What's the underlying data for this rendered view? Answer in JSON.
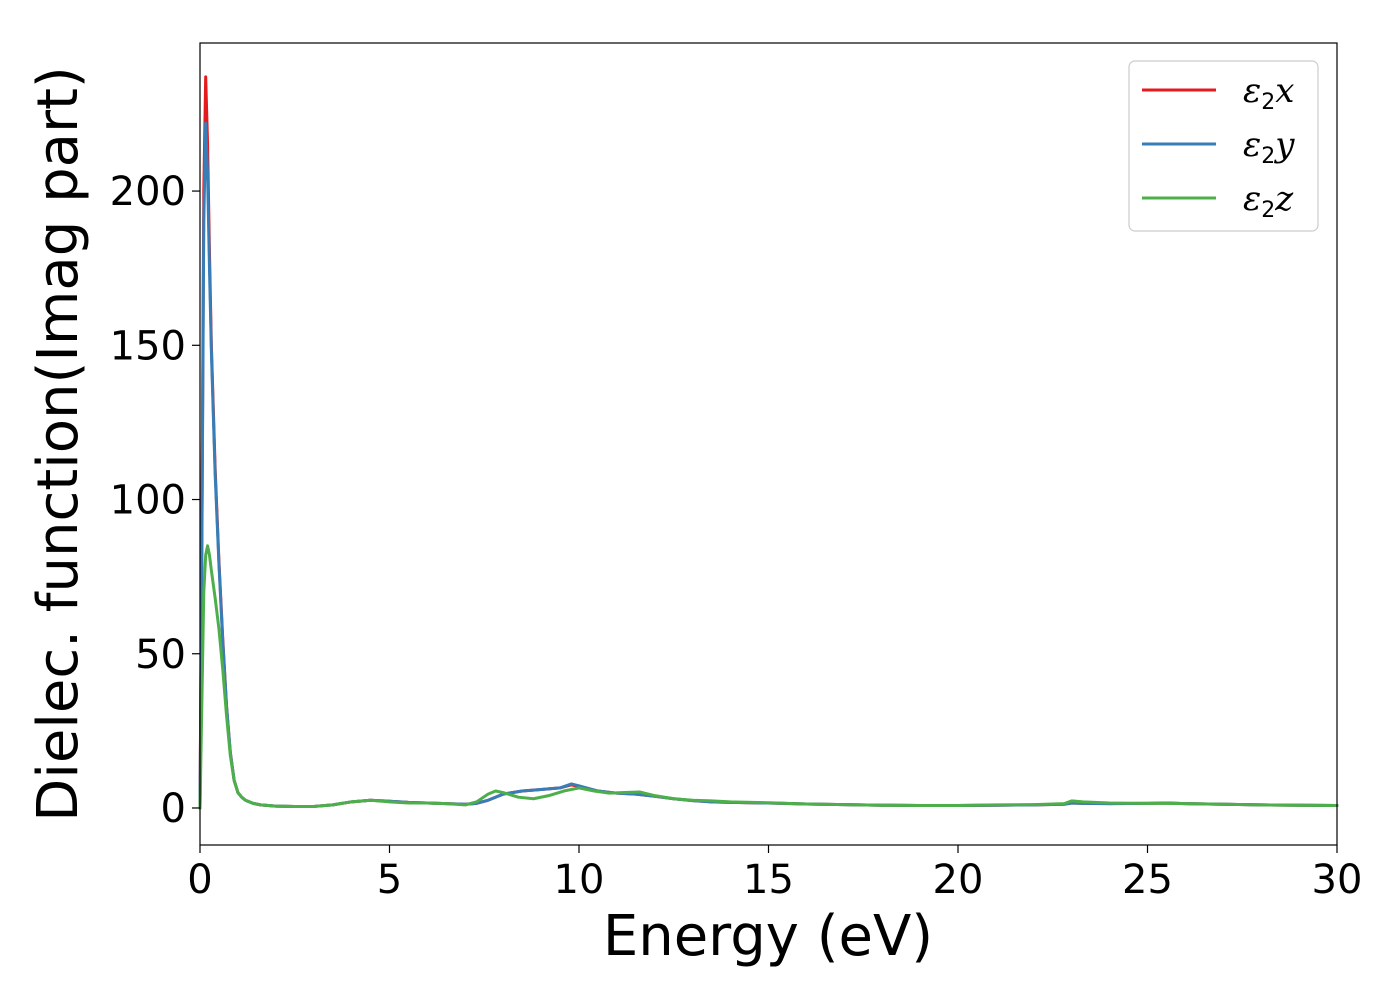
{
  "chart_data": {
    "type": "line",
    "title": "",
    "xlabel": "Energy (eV)",
    "ylabel": "Dielec. function(Imag part)",
    "xlim": [
      0,
      30
    ],
    "ylim": [
      -12,
      248
    ],
    "xticks": [
      0,
      5,
      10,
      15,
      20,
      25,
      30
    ],
    "yticks": [
      0,
      50,
      100,
      150,
      200
    ],
    "xtick_labels": [
      "0",
      "5",
      "10",
      "15",
      "20",
      "25",
      "30"
    ],
    "ytick_labels": [
      "0",
      "50",
      "100",
      "150",
      "200"
    ],
    "grid": false,
    "legend_position": "top-right",
    "series": [
      {
        "name": "ε2x",
        "legend_base": "ε",
        "legend_sub": "2",
        "legend_tail": "x",
        "color": "#e41a1c",
        "x": [
          0,
          0.05,
          0.1,
          0.15,
          0.2,
          0.25,
          0.3,
          0.4,
          0.5,
          0.6,
          0.7,
          0.8,
          0.9,
          1.0,
          1.1,
          1.2,
          1.4,
          1.6,
          2.0,
          2.5,
          3.0,
          3.5,
          4.0,
          4.5,
          5.0,
          5.5,
          6.0,
          6.5,
          7.0,
          7.3,
          7.6,
          8.0,
          8.5,
          9.0,
          9.5,
          9.8,
          10.0,
          10.5,
          11.0,
          11.5,
          12.0,
          12.5,
          13.0,
          13.5,
          14.0,
          15.0,
          16.0,
          17.0,
          18.0,
          19.0,
          20.0,
          21.0,
          22.0,
          22.8,
          23.0,
          23.3,
          24.0,
          25.0,
          25.5,
          26.0,
          27.0,
          28.0,
          29.0,
          30.0
        ],
        "y": [
          0,
          90,
          200,
          237,
          215,
          180,
          150,
          110,
          80,
          55,
          33,
          18,
          9,
          5,
          3.5,
          2.5,
          1.5,
          1.0,
          0.6,
          0.5,
          0.5,
          1.0,
          2.0,
          2.5,
          2.2,
          1.8,
          1.6,
          1.4,
          1.2,
          1.5,
          2.5,
          4.5,
          5.5,
          6.0,
          6.5,
          7.5,
          7.0,
          5.5,
          4.8,
          4.5,
          3.8,
          3.0,
          2.4,
          2.0,
          1.8,
          1.6,
          1.3,
          1.1,
          0.9,
          0.8,
          0.8,
          0.9,
          1.0,
          1.2,
          1.6,
          1.5,
          1.4,
          1.5,
          1.6,
          1.4,
          1.2,
          1.0,
          0.9,
          0.8
        ]
      },
      {
        "name": "ε2y",
        "legend_base": "ε",
        "legend_sub": "2",
        "legend_tail": "y",
        "color": "#377eb8",
        "x": [
          0,
          0.05,
          0.1,
          0.15,
          0.2,
          0.25,
          0.3,
          0.4,
          0.5,
          0.6,
          0.7,
          0.8,
          0.9,
          1.0,
          1.1,
          1.2,
          1.4,
          1.6,
          2.0,
          2.5,
          3.0,
          3.5,
          4.0,
          4.5,
          5.0,
          5.5,
          6.0,
          6.5,
          7.0,
          7.3,
          7.6,
          8.0,
          8.5,
          9.0,
          9.5,
          9.8,
          10.0,
          10.5,
          11.0,
          11.5,
          12.0,
          12.5,
          13.0,
          13.5,
          14.0,
          15.0,
          16.0,
          17.0,
          18.0,
          19.0,
          20.0,
          21.0,
          22.0,
          22.8,
          23.0,
          23.3,
          24.0,
          25.0,
          25.5,
          26.0,
          27.0,
          28.0,
          29.0,
          30.0
        ],
        "y": [
          0,
          85,
          190,
          222,
          205,
          175,
          148,
          108,
          79,
          54,
          33,
          18,
          9,
          5,
          3.5,
          2.5,
          1.5,
          1.0,
          0.6,
          0.5,
          0.5,
          1.0,
          2.0,
          2.5,
          2.2,
          1.8,
          1.6,
          1.4,
          1.2,
          1.5,
          2.5,
          4.5,
          5.5,
          6.0,
          6.5,
          7.8,
          7.2,
          5.5,
          4.8,
          4.5,
          3.8,
          3.0,
          2.4,
          2.0,
          1.8,
          1.6,
          1.3,
          1.1,
          0.9,
          0.8,
          0.8,
          0.9,
          1.0,
          1.2,
          1.6,
          1.5,
          1.4,
          1.5,
          1.6,
          1.4,
          1.2,
          1.0,
          0.9,
          0.8
        ]
      },
      {
        "name": "ε2z",
        "legend_base": "ε",
        "legend_sub": "2",
        "legend_tail": "z",
        "color": "#4daf4a",
        "x": [
          0,
          0.05,
          0.1,
          0.15,
          0.2,
          0.25,
          0.3,
          0.4,
          0.5,
          0.6,
          0.7,
          0.8,
          0.9,
          1.0,
          1.1,
          1.2,
          1.4,
          1.6,
          2.0,
          2.5,
          3.0,
          3.5,
          4.0,
          4.5,
          5.0,
          5.5,
          6.0,
          6.5,
          7.0,
          7.3,
          7.6,
          7.8,
          8.0,
          8.4,
          8.8,
          9.2,
          9.6,
          10.0,
          10.4,
          10.8,
          11.2,
          11.6,
          12.0,
          12.5,
          13.0,
          13.5,
          14.0,
          15.0,
          16.0,
          17.0,
          18.0,
          19.0,
          20.0,
          21.0,
          22.0,
          22.8,
          23.0,
          23.3,
          24.0,
          25.0,
          25.5,
          26.0,
          27.0,
          28.0,
          29.0,
          30.0
        ],
        "y": [
          0,
          35,
          70,
          82,
          85,
          82,
          77,
          68,
          58,
          45,
          30,
          17,
          9,
          5,
          3.5,
          2.5,
          1.5,
          1.0,
          0.6,
          0.5,
          0.5,
          1.0,
          2.0,
          2.5,
          2.0,
          1.6,
          1.6,
          1.4,
          1.0,
          2.0,
          4.5,
          5.5,
          5.0,
          3.5,
          3.0,
          4.0,
          5.5,
          6.5,
          5.5,
          4.8,
          5.0,
          5.2,
          4.0,
          3.0,
          2.5,
          2.3,
          2.0,
          1.7,
          1.3,
          1.1,
          0.9,
          0.8,
          0.8,
          1.0,
          1.1,
          1.4,
          2.3,
          2.0,
          1.6,
          1.5,
          1.5,
          1.4,
          1.2,
          1.0,
          0.9,
          0.8
        ]
      }
    ]
  }
}
